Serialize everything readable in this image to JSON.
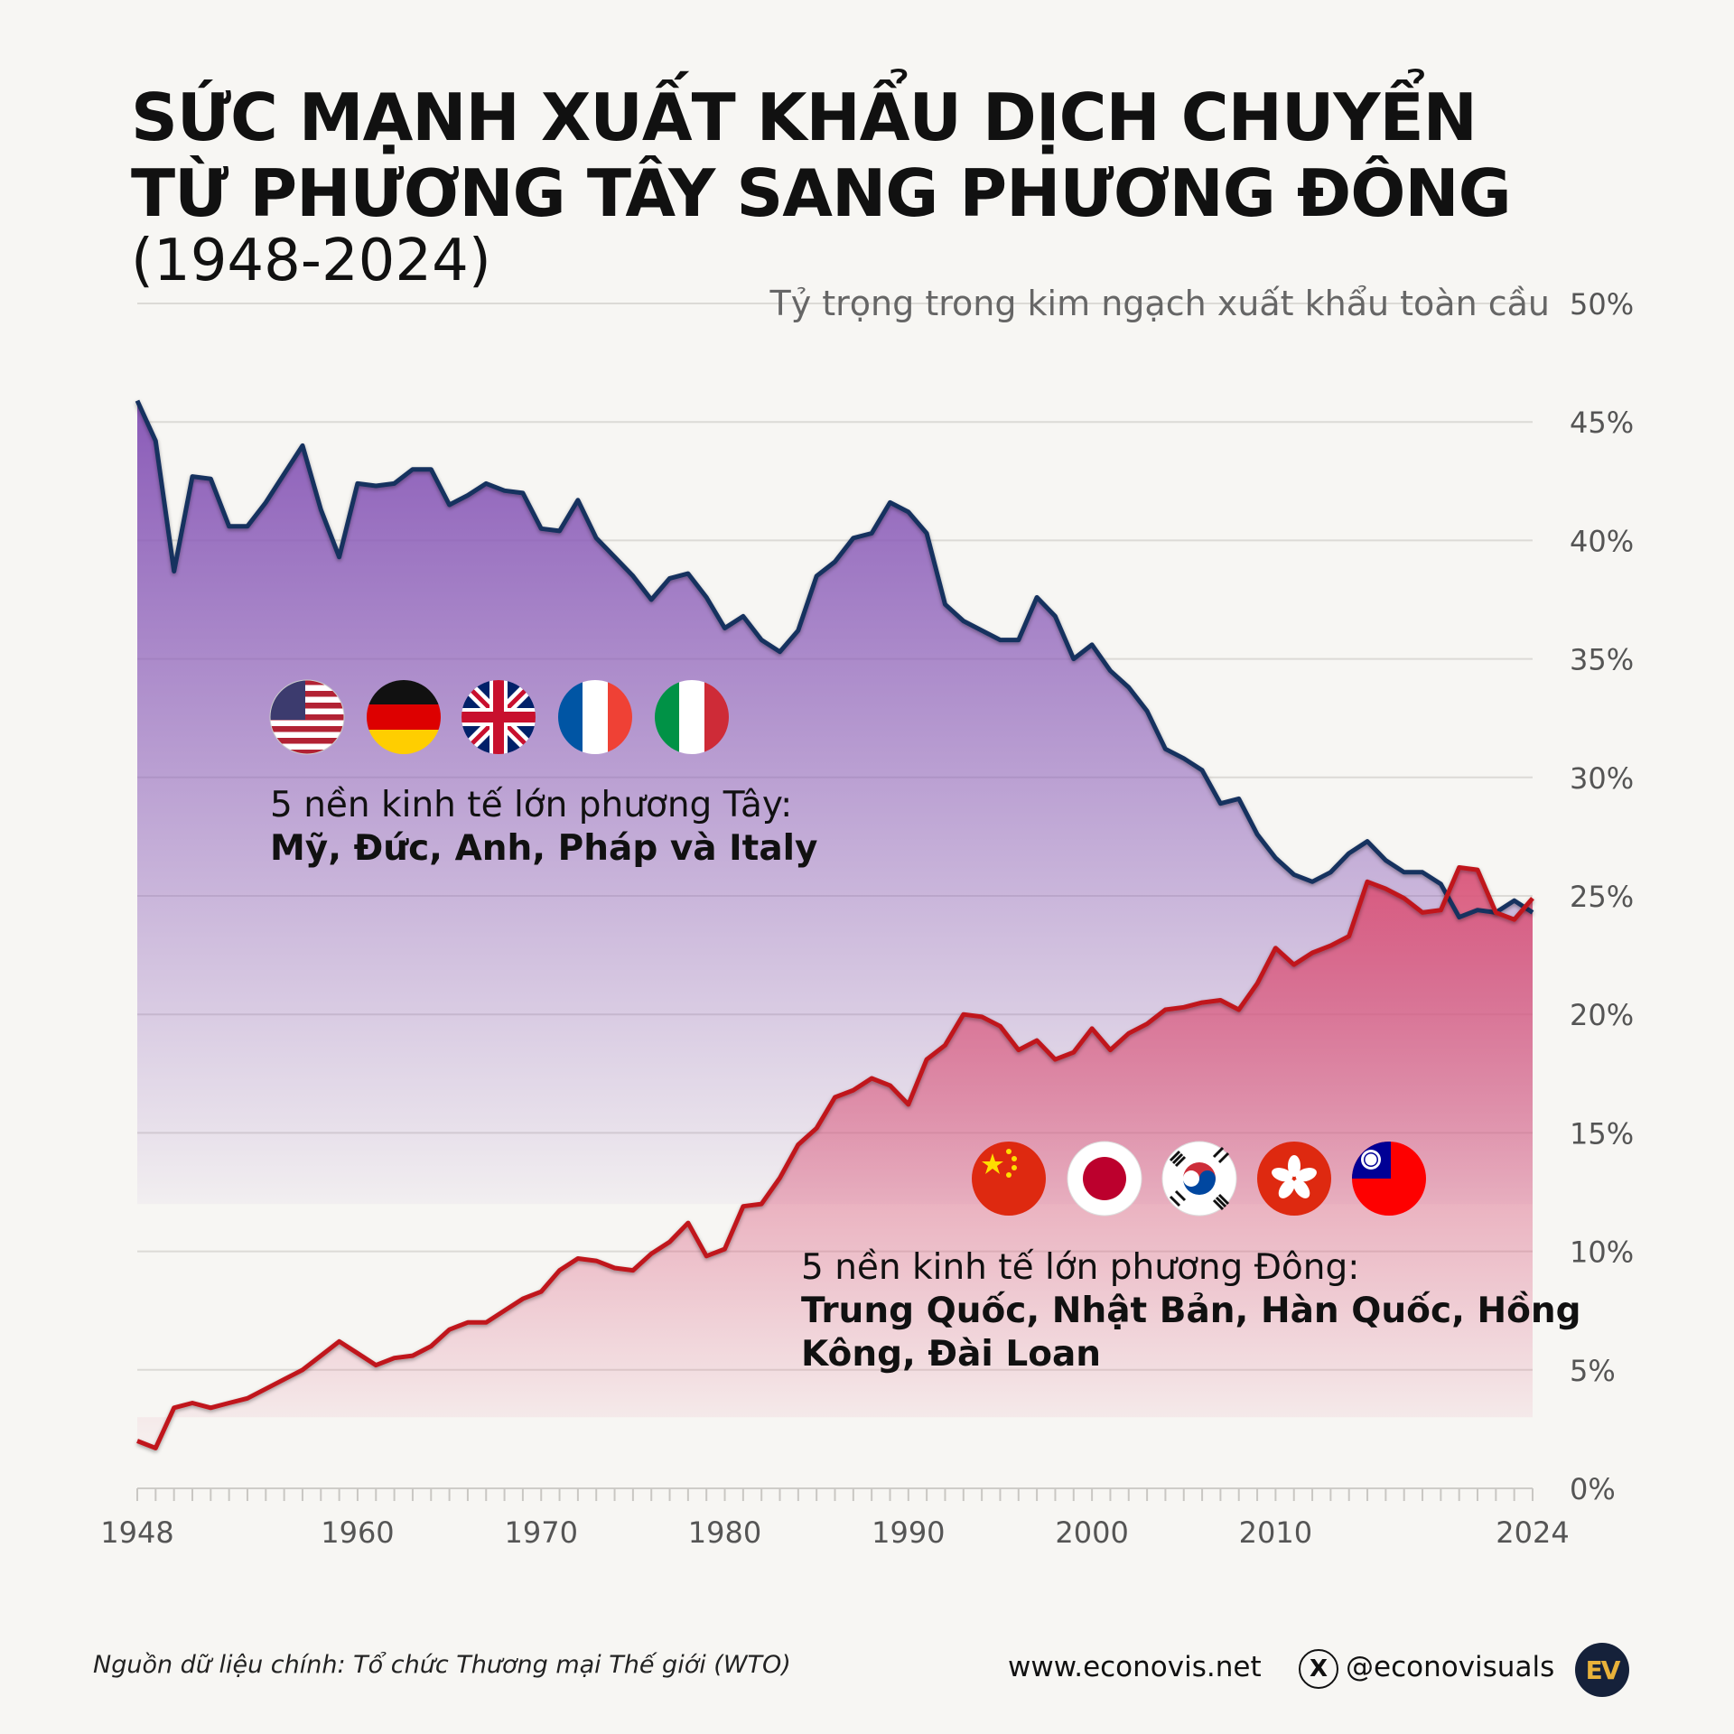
{
  "title_lines": [
    "SỨC MẠNH XUẤT KHẨU DỊCH CHUYỂN",
    "TỪ PHƯƠNG TÂY SANG PHƯƠNG ĐÔNG"
  ],
  "subtitle": "(1948-2024)",
  "west_note": {
    "line1": "5 nền kinh tế lớn phương Tây:",
    "line2": "Mỹ, Đức, Anh, Pháp và Italy",
    "flags": [
      "us-flag",
      "germany-flag",
      "uk-flag",
      "france-flag",
      "italy-flag"
    ]
  },
  "east_note": {
    "line1": "5 nền kinh tế lớn phương Đông:",
    "line2": "Trung Quốc, Nhật Bản, Hàn Quốc, Hồng",
    "line3": "Kông, Đài Loan",
    "flags": [
      "china-flag",
      "japan-flag",
      "south-korea-flag",
      "hong-kong-flag",
      "taiwan-flag"
    ]
  },
  "chart_data": {
    "type": "area",
    "title": "SỨC MẠNH XUẤT KHẨU DỊCH CHUYỂN TỪ PHƯƠNG TÂY SANG PHƯƠNG ĐÔNG",
    "ylabel": "Tỷ trọng trong kim ngạch xuất khẩu toàn cầu",
    "xlim": [
      1948,
      2024
    ],
    "ylim": [
      0,
      50
    ],
    "y_ticks": [
      "50%",
      "45%",
      "40%",
      "35%",
      "30%",
      "25%",
      "20%",
      "15%",
      "10%",
      "5%",
      "0%"
    ],
    "y_tick_values": [
      50,
      45,
      40,
      35,
      30,
      25,
      20,
      15,
      10,
      5,
      0
    ],
    "x_ticks": [
      "1948",
      "1960",
      "1970",
      "1980",
      "1990",
      "2000",
      "2010",
      "2024"
    ],
    "x_tick_values": [
      1948,
      1960,
      1970,
      1980,
      1990,
      2000,
      2010,
      2024
    ],
    "grid": true,
    "x": [
      1948,
      1949,
      1950,
      1951,
      1952,
      1953,
      1954,
      1955,
      1956,
      1957,
      1958,
      1959,
      1960,
      1961,
      1962,
      1963,
      1964,
      1965,
      1966,
      1967,
      1968,
      1969,
      1970,
      1971,
      1972,
      1973,
      1974,
      1975,
      1976,
      1977,
      1978,
      1979,
      1980,
      1981,
      1982,
      1983,
      1984,
      1985,
      1986,
      1987,
      1988,
      1989,
      1990,
      1991,
      1992,
      1993,
      1994,
      1995,
      1996,
      1997,
      1998,
      1999,
      2000,
      2001,
      2002,
      2003,
      2004,
      2005,
      2006,
      2007,
      2008,
      2009,
      2010,
      2011,
      2012,
      2013,
      2014,
      2015,
      2016,
      2017,
      2018,
      2019,
      2020,
      2021,
      2022,
      2023,
      2024
    ],
    "series": [
      {
        "name": "5 nền kinh tế lớn phương Tây",
        "color": "#16305f",
        "fill_top": "#8a5bb8",
        "values": [
          45.9,
          44.2,
          38.7,
          42.7,
          42.6,
          40.6,
          40.6,
          41.6,
          42.8,
          44.0,
          41.3,
          39.3,
          42.4,
          42.3,
          42.4,
          43.0,
          43.0,
          41.5,
          41.9,
          42.4,
          42.1,
          42.0,
          40.5,
          40.4,
          41.7,
          40.1,
          39.3,
          38.5,
          37.5,
          38.4,
          38.6,
          37.6,
          36.3,
          36.8,
          35.8,
          35.3,
          36.2,
          38.5,
          39.1,
          40.1,
          40.3,
          41.6,
          41.2,
          40.3,
          37.3,
          36.6,
          36.2,
          35.8,
          35.8,
          37.6,
          36.8,
          35.0,
          35.6,
          34.5,
          33.8,
          32.8,
          31.2,
          30.8,
          30.3,
          28.9,
          29.1,
          27.6,
          26.6,
          25.9,
          25.6,
          26.0,
          26.8,
          27.3,
          26.5,
          26.0,
          26.0,
          25.5,
          24.1,
          24.4,
          24.3,
          24.8,
          24.3
        ]
      },
      {
        "name": "5 nền kinh tế lớn phương Đông",
        "color": "#c0171e",
        "fill_top": "#d9557a",
        "values": [
          2.0,
          1.7,
          3.4,
          3.6,
          3.4,
          3.6,
          3.8,
          4.2,
          4.6,
          5.0,
          5.6,
          6.2,
          5.7,
          5.2,
          5.5,
          5.6,
          6.0,
          6.7,
          7.0,
          7.0,
          7.5,
          8.0,
          8.3,
          9.2,
          9.7,
          9.6,
          9.3,
          9.2,
          9.9,
          10.4,
          11.2,
          9.8,
          10.1,
          11.9,
          12.0,
          13.1,
          14.5,
          15.2,
          16.5,
          16.8,
          17.3,
          17.0,
          16.2,
          18.1,
          18.7,
          20.0,
          19.9,
          19.5,
          18.5,
          18.9,
          18.1,
          18.4,
          19.4,
          18.5,
          19.2,
          19.6,
          20.2,
          20.3,
          20.5,
          20.6,
          20.2,
          21.3,
          22.8,
          22.1,
          22.6,
          22.9,
          23.3,
          25.6,
          25.3,
          24.9,
          24.3,
          24.4,
          26.2,
          26.1,
          24.3,
          24.0,
          24.9
        ]
      }
    ]
  },
  "footer": {
    "source": "Nguồn dữ liệu chính: Tổ chức Thương mại Thế giới (WTO)",
    "website": "www.econovis.net",
    "x_icon": "X",
    "handle": "@econovisuals",
    "logo": "EV"
  }
}
